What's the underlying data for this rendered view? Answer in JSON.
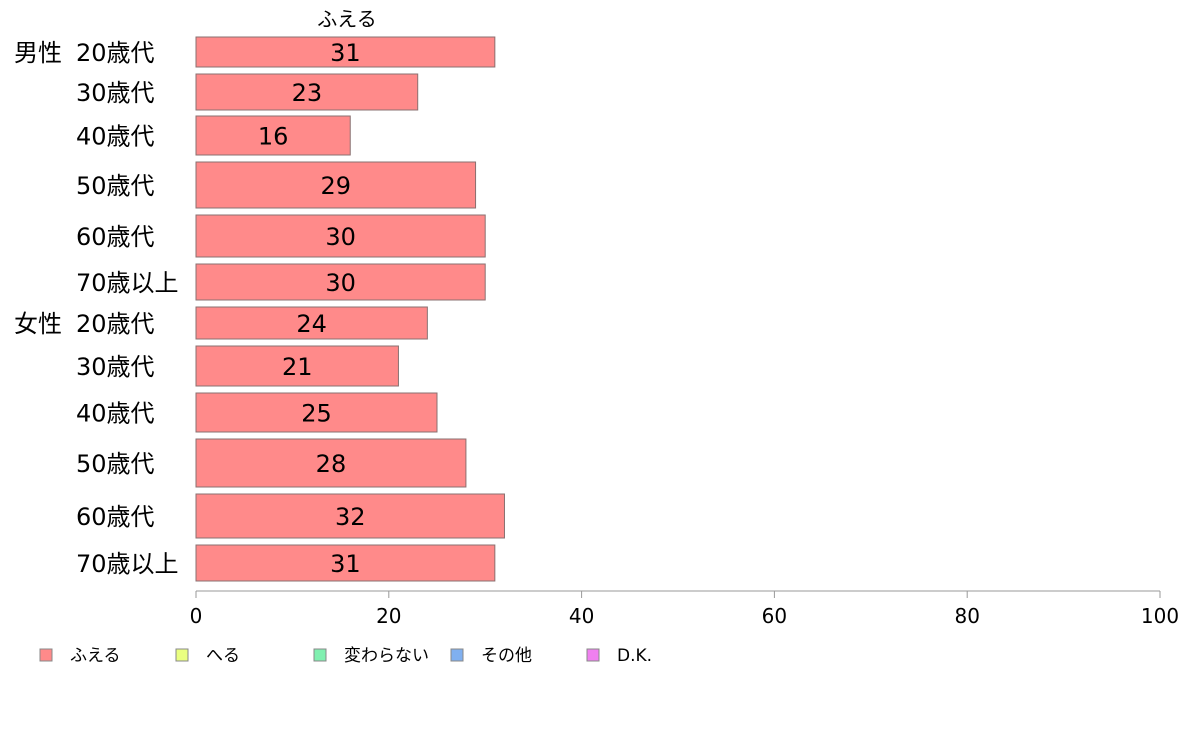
{
  "chart_data": {
    "type": "bar",
    "orientation": "horizontal",
    "stacked": true,
    "title": "ふえる",
    "groups": [
      {
        "label": "男性",
        "first_index": 0
      },
      {
        "label": "女性",
        "first_index": 6
      }
    ],
    "categories": [
      "20歳代",
      "30歳代",
      "40歳代",
      "50歳代",
      "60歳代",
      "70歳以上",
      "20歳代",
      "30歳代",
      "40歳代",
      "50歳代",
      "60歳代",
      "70歳以上"
    ],
    "series": [
      {
        "name": "ふえる",
        "color": "#ff8a8a",
        "values": [
          31,
          23,
          16,
          29,
          30,
          30,
          24,
          21,
          25,
          28,
          32,
          31
        ]
      }
    ],
    "legend": {
      "placement": "bottom-left",
      "items": [
        {
          "label": "ふえる",
          "color": "#ff8a8a"
        },
        {
          "label": "へる",
          "color": "#eaff80"
        },
        {
          "label": "変わらない",
          "color": "#80f0b0"
        },
        {
          "label": "その他",
          "color": "#80b0f0"
        },
        {
          "label": "D.K.",
          "color": "#f080f0"
        }
      ]
    },
    "xlim": [
      0,
      100
    ],
    "xticks": [
      0,
      20,
      40,
      60,
      80,
      100
    ],
    "grid": false
  }
}
